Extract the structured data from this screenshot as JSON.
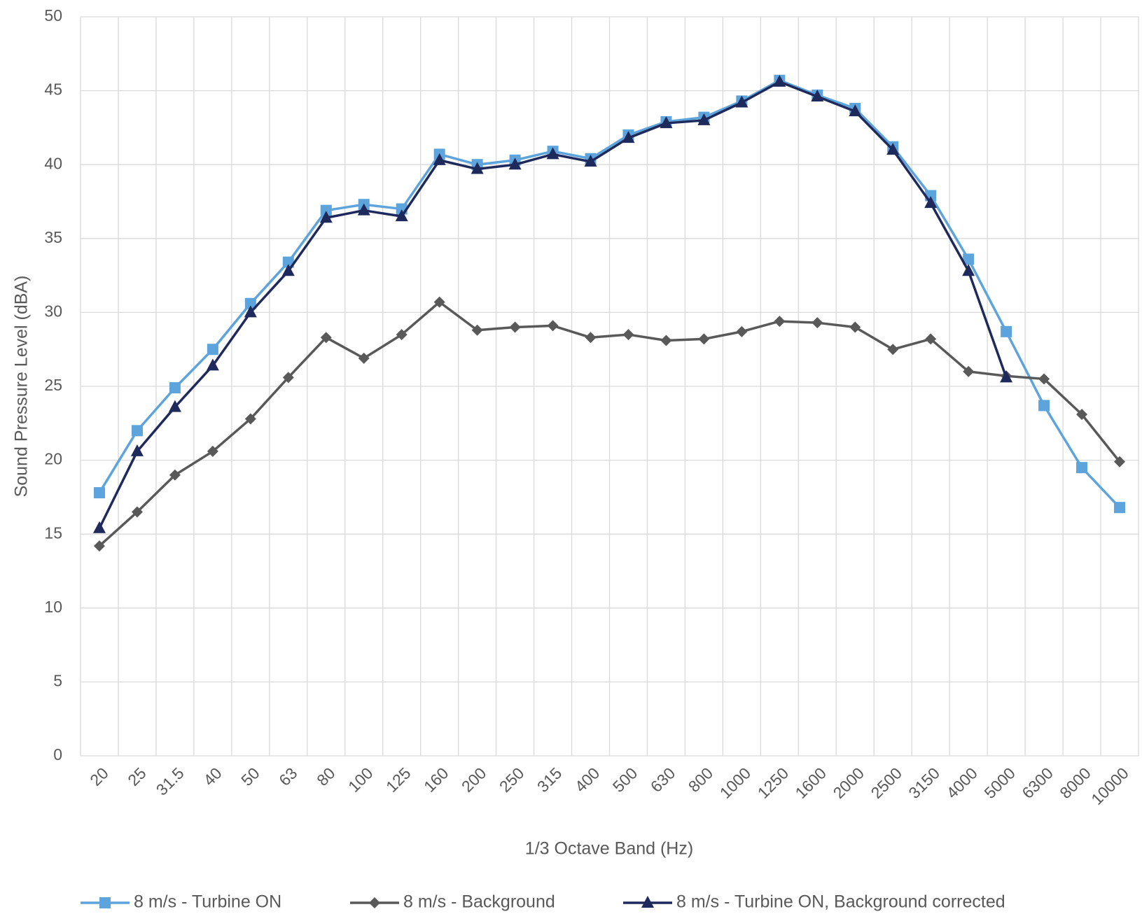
{
  "chart_data": {
    "type": "line",
    "x_label": "1/3 Octave Band (Hz)",
    "y_label": "Sound Pressure Level (dBA)",
    "categories": [
      "20",
      "25",
      "31.5",
      "40",
      "50",
      "63",
      "80",
      "100",
      "125",
      "160",
      "200",
      "250",
      "315",
      "400",
      "500",
      "630",
      "800",
      "1000",
      "1250",
      "1600",
      "2000",
      "2500",
      "3150",
      "4000",
      "5000",
      "6300",
      "8000",
      "10000"
    ],
    "series": [
      {
        "name": "8 m/s - Turbine ON",
        "color": "#5ea4dc",
        "marker": "square",
        "values": [
          17.8,
          22.0,
          24.9,
          27.5,
          30.6,
          33.4,
          36.9,
          37.3,
          37.0,
          40.7,
          40.0,
          40.3,
          40.9,
          40.4,
          42.0,
          42.9,
          43.2,
          44.3,
          45.7,
          44.7,
          43.8,
          41.2,
          37.9,
          33.6,
          28.7,
          23.7,
          19.5,
          16.8
        ]
      },
      {
        "name": "8 m/s - Background",
        "color": "#595959",
        "marker": "diamond",
        "values": [
          14.2,
          16.5,
          19.0,
          20.6,
          22.8,
          25.6,
          28.3,
          26.9,
          28.5,
          30.7,
          28.8,
          29.0,
          29.1,
          28.3,
          28.5,
          28.1,
          28.2,
          28.7,
          29.4,
          29.3,
          29.0,
          27.5,
          28.2,
          26.0,
          25.7,
          25.5,
          23.1,
          19.9
        ]
      },
      {
        "name": "8 m/s - Turbine ON, Background corrected",
        "color": "#1f2a5c",
        "marker": "triangle",
        "values": [
          15.4,
          20.6,
          23.6,
          26.4,
          30.0,
          32.8,
          36.4,
          36.9,
          36.5,
          40.3,
          39.7,
          40.0,
          40.7,
          40.2,
          41.8,
          42.8,
          43.0,
          44.2,
          45.6,
          44.6,
          43.6,
          41.0,
          37.4,
          32.8,
          25.6,
          null,
          null,
          null
        ]
      }
    ],
    "ylim": [
      0,
      50
    ],
    "yticks": [
      0,
      5,
      10,
      15,
      20,
      25,
      30,
      35,
      40,
      45,
      50
    ],
    "grid": true
  }
}
